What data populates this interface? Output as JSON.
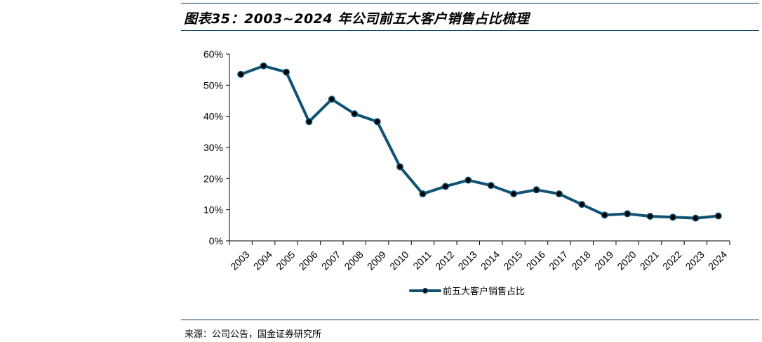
{
  "header": {
    "title": "图表35：2003~2024 年公司前五大客户销售占比梳理"
  },
  "footer": {
    "source": "来源：公司公告，国金证券研究所"
  },
  "colors": {
    "line": "#0f5274",
    "marker": "#000000",
    "rule": "#0b3b60"
  },
  "chart_data": {
    "type": "line",
    "title": "",
    "xlabel": "",
    "ylabel": "",
    "ylim": [
      0,
      60
    ],
    "yticks": [
      "0%",
      "10%",
      "20%",
      "30%",
      "40%",
      "50%",
      "60%"
    ],
    "grid": false,
    "legend_position": "bottom",
    "categories": [
      "2003",
      "2004",
      "2005",
      "2006",
      "2007",
      "2008",
      "2009",
      "2010",
      "2011",
      "2012",
      "2013",
      "2014",
      "2015",
      "2016",
      "2017",
      "2018",
      "2019",
      "2020",
      "2021",
      "2022",
      "2023",
      "2024"
    ],
    "series": [
      {
        "name": "前五大客户销售占比",
        "values": [
          53.5,
          56.2,
          54.2,
          38.3,
          45.5,
          40.8,
          38.3,
          23.8,
          15.1,
          17.5,
          19.5,
          17.8,
          15.1,
          16.4,
          15.1,
          11.7,
          8.3,
          8.7,
          7.9,
          7.6,
          7.3,
          8.0
        ]
      }
    ]
  }
}
